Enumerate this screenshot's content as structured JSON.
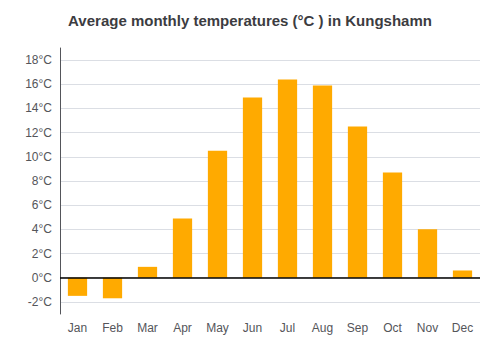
{
  "chart_data": {
    "type": "bar",
    "title": "Average monthly temperatures (°C ) in Kungshamn",
    "categories": [
      "Jan",
      "Feb",
      "Mar",
      "Apr",
      "May",
      "Jun",
      "Jul",
      "Aug",
      "Sep",
      "Oct",
      "Nov",
      "Dec"
    ],
    "values": [
      -1.5,
      -1.7,
      0.9,
      4.9,
      10.5,
      14.9,
      16.4,
      15.9,
      12.5,
      8.7,
      4.0,
      0.6
    ],
    "color": "#FFAA00",
    "ylim": [
      -3,
      19
    ],
    "yticks": [
      {
        "value": -2,
        "label": "-2°C"
      },
      {
        "value": 0,
        "label": "0°C"
      },
      {
        "value": 2,
        "label": "2°C"
      },
      {
        "value": 4,
        "label": "4°C"
      },
      {
        "value": 6,
        "label": "6°C"
      },
      {
        "value": 8,
        "label": "8°C"
      },
      {
        "value": 10,
        "label": "10°C"
      },
      {
        "value": 12,
        "label": "12°C"
      },
      {
        "value": 14,
        "label": "14°C"
      },
      {
        "value": 16,
        "label": "16°C"
      },
      {
        "value": 18,
        "label": "18°C"
      }
    ],
    "grid": true
  }
}
